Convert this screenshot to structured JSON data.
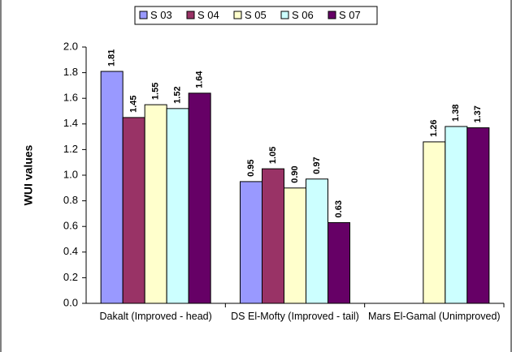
{
  "chart_data": {
    "type": "bar",
    "y_label": "WUI values",
    "categories": [
      "Dakalt (Improved - head)",
      "DS El-Mofty (Improved - tail)",
      "Mars El-Gamal (Unimproved)"
    ],
    "series": [
      {
        "name": "S 03",
        "color": "#9999ff",
        "values": [
          1.81,
          0.95,
          null
        ],
        "value_labels": [
          "1.81",
          "0.95",
          null
        ]
      },
      {
        "name": "S 04",
        "color": "#993366",
        "values": [
          1.45,
          1.05,
          null
        ],
        "value_labels": [
          "1.45",
          "1.05",
          null
        ]
      },
      {
        "name": "S 05",
        "color": "#ffffcc",
        "values": [
          1.55,
          0.9,
          1.26
        ],
        "value_labels": [
          "1.55",
          "0.90",
          "1.26"
        ]
      },
      {
        "name": "S 06",
        "color": "#ccffff",
        "values": [
          1.52,
          0.97,
          1.38
        ],
        "value_labels": [
          "1.52",
          "0.97",
          "1.38"
        ]
      },
      {
        "name": "S 07",
        "color": "#660066",
        "values": [
          1.64,
          0.63,
          1.37
        ],
        "value_labels": [
          "1.64",
          "0.63",
          "1.37"
        ]
      }
    ],
    "ylim": [
      0,
      2
    ],
    "yticks": [
      {
        "value": 0,
        "label": "0.0"
      },
      {
        "value": 0.2,
        "label": "0.2"
      },
      {
        "value": 0.4,
        "label": "0.4"
      },
      {
        "value": 0.6,
        "label": "0.6"
      },
      {
        "value": 0.8,
        "label": "0.8"
      },
      {
        "value": 1,
        "label": "1.0"
      },
      {
        "value": 1.2,
        "label": "1.2"
      },
      {
        "value": 1.4,
        "label": "1.4"
      },
      {
        "value": 1.6,
        "label": "1.6"
      },
      {
        "value": 1.8,
        "label": "1.8"
      },
      {
        "value": 2,
        "label": "2.0"
      }
    ],
    "grid": false,
    "legend": "top"
  }
}
